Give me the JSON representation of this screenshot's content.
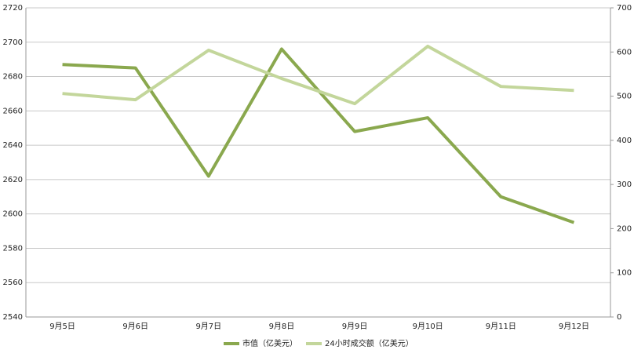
{
  "chart_data": {
    "type": "line",
    "categories": [
      "9月5日",
      "9月6日",
      "9月7日",
      "9月8日",
      "9月9日",
      "9月10日",
      "9月11日",
      "9月12日"
    ],
    "series": [
      {
        "name": "市值（亿美元）",
        "color": "#8aa84e",
        "values": [
          2687,
          2685,
          2622,
          2696,
          2648,
          2656,
          2610,
          2595
        ]
      },
      {
        "name": "24小时成交额（亿美元）",
        "color": "#c3d69b",
        "axis": "y2",
        "values": [
          506,
          492,
          604,
          540,
          483,
          613,
          522,
          513
        ]
      }
    ],
    "ylim": [
      2540,
      2720
    ],
    "yticks": [
      2540,
      2560,
      2580,
      2600,
      2620,
      2640,
      2660,
      2680,
      2700,
      2720
    ],
    "y2lim": [
      0,
      700
    ],
    "y2ticks": [
      0,
      100,
      200,
      300,
      400,
      500,
      600,
      700
    ],
    "grid": true,
    "legend": "bottom"
  }
}
